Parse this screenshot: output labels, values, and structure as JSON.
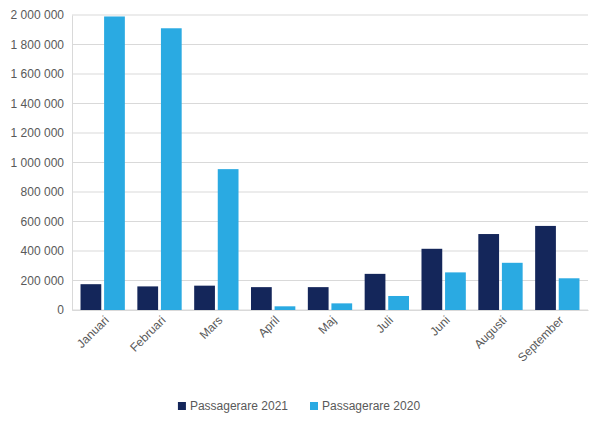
{
  "chart_data": {
    "type": "bar",
    "categories": [
      "Januari",
      "Februari",
      "Mars",
      "April",
      "Maj",
      "Juli",
      "Juni",
      "Augusti",
      "September"
    ],
    "series": [
      {
        "name": "Passagerare 2021",
        "color": "#14265a",
        "values": [
          175000,
          160000,
          165000,
          155000,
          155000,
          245000,
          415000,
          515000,
          570000
        ]
      },
      {
        "name": "Passagerare 2020",
        "color": "#2aaae2",
        "values": [
          1990000,
          1910000,
          955000,
          25000,
          45000,
          95000,
          255000,
          320000,
          215000
        ]
      }
    ],
    "ylim": [
      0,
      2000000
    ],
    "yticks": [
      0,
      {
        "value": 200000,
        "label": "200 000"
      },
      {
        "value": 400000,
        "label": "400 000"
      },
      {
        "value": 600000,
        "label": "600 000"
      },
      {
        "value": 800000,
        "label": "800 000"
      },
      {
        "value": 1000000,
        "label": "1 000 000"
      },
      {
        "value": 1200000,
        "label": "1 200 000"
      },
      {
        "value": 1400000,
        "label": "1 400 000"
      },
      {
        "value": 1600000,
        "label": "1 600 000"
      },
      {
        "value": 1800000,
        "label": "1 800 000"
      },
      {
        "value": 2000000,
        "label": "2 000 000"
      }
    ],
    "grid": true,
    "legend": "bottom"
  }
}
